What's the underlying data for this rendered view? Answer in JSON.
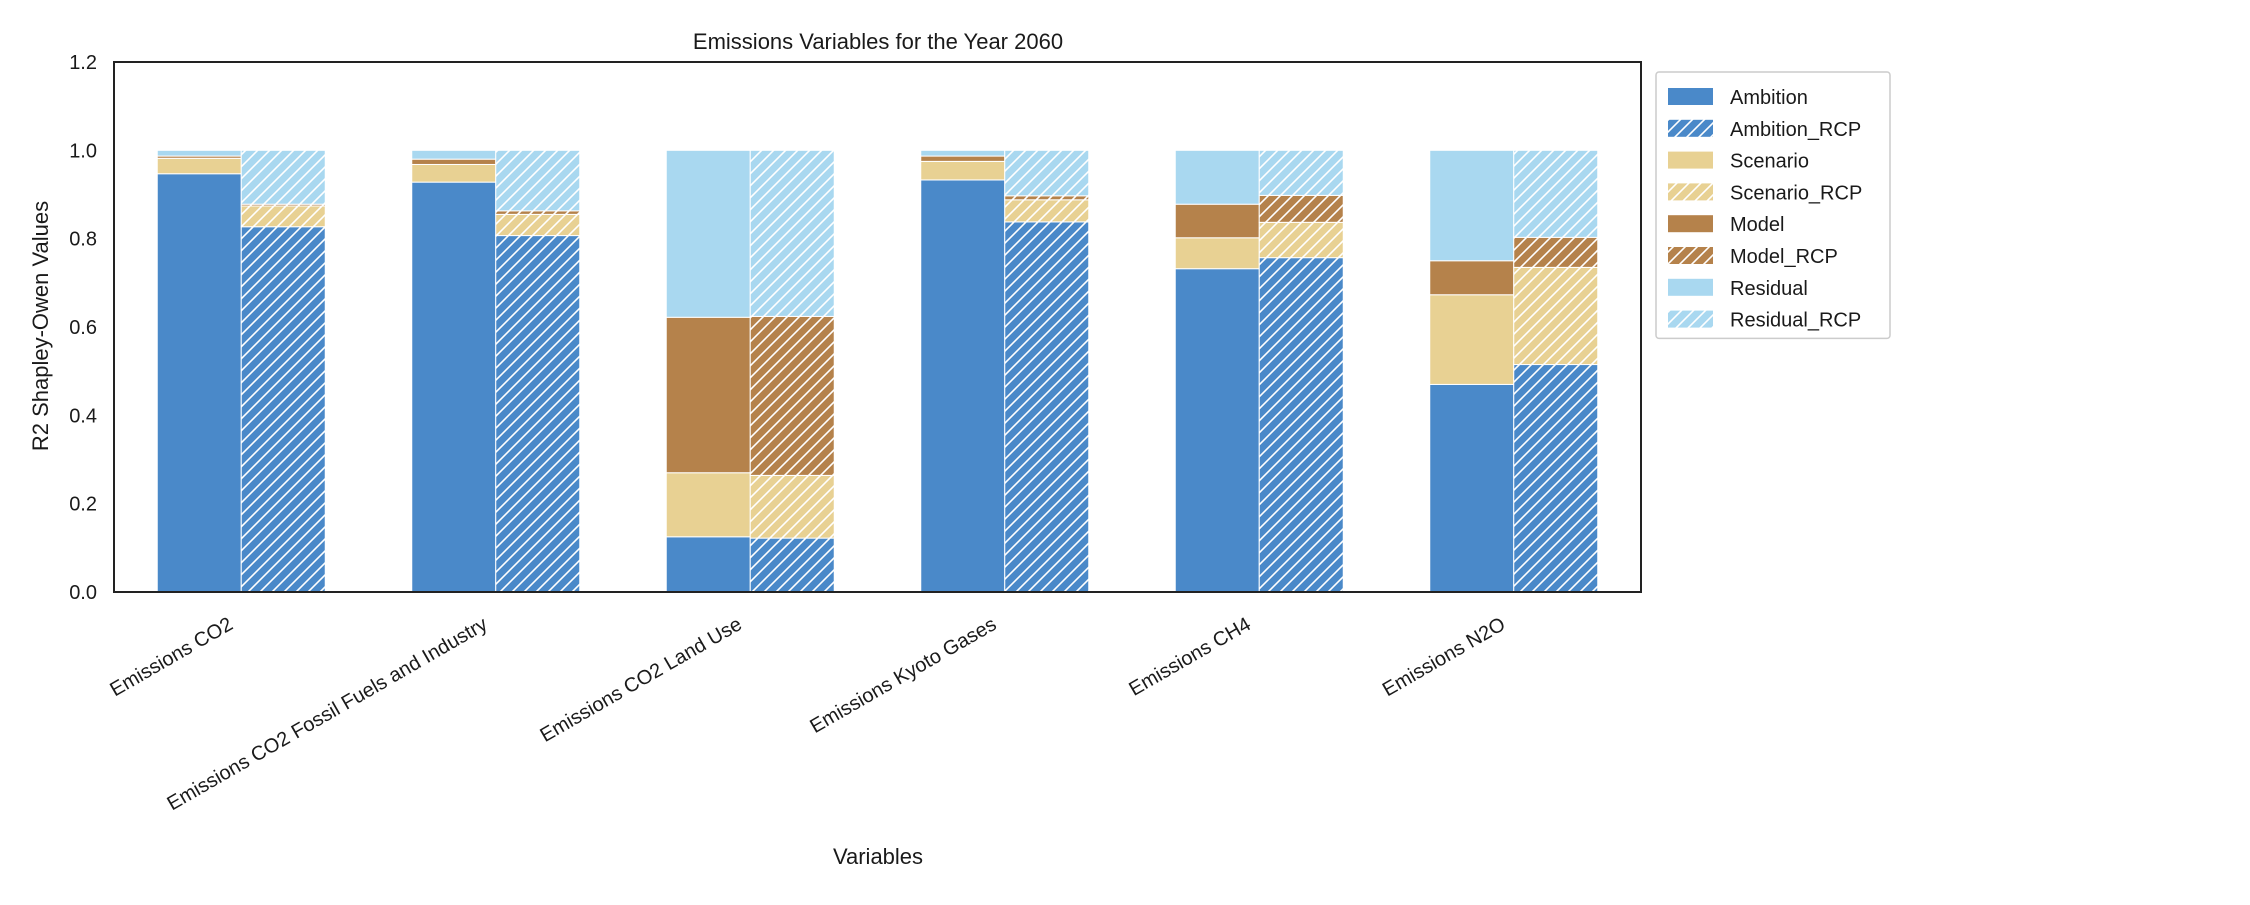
{
  "chart_data": {
    "type": "bar",
    "stacked": true,
    "grouped": true,
    "title": "Emissions Variables for the Year 2060",
    "xlabel": "Variables",
    "ylabel": "R2 Shapley-Owen Values",
    "ylim": [
      0,
      1.2
    ],
    "yticks": [
      0.0,
      0.2,
      0.4,
      0.6,
      0.8,
      1.0,
      1.2
    ],
    "ytick_labels": [
      "0.0",
      "0.2",
      "0.4",
      "0.6",
      "0.8",
      "1.0",
      "1.2"
    ],
    "grid": false,
    "legend_position": "outside-top-right",
    "categories": [
      "Emissions CO2",
      "Emissions CO2 Fossil Fuels and Industry",
      "Emissions CO2 Land Use",
      "Emissions Kyoto Gases",
      "Emissions CH4",
      "Emissions N2O"
    ],
    "groups": [
      {
        "name": "",
        "hatched": false
      },
      {
        "name": "RCP",
        "hatched": true
      }
    ],
    "components": [
      {
        "name": "Ambition",
        "color": "#4a89c9"
      },
      {
        "name": "Scenario",
        "color": "#e8d193"
      },
      {
        "name": "Model",
        "color": "#b5824b"
      },
      {
        "name": "Residual",
        "color": "#a9d8f0"
      }
    ],
    "series": [
      {
        "name": "Ambition",
        "group": 0,
        "values": [
          0.947,
          0.928,
          0.125,
          0.933,
          0.732,
          0.47
        ]
      },
      {
        "name": "Ambition_RCP",
        "group": 1,
        "values": [
          0.827,
          0.807,
          0.122,
          0.838,
          0.757,
          0.515
        ]
      },
      {
        "name": "Scenario",
        "group": 0,
        "values": [
          0.035,
          0.04,
          0.145,
          0.042,
          0.07,
          0.203
        ]
      },
      {
        "name": "Scenario_RCP",
        "group": 1,
        "values": [
          0.047,
          0.048,
          0.142,
          0.05,
          0.08,
          0.22
        ]
      },
      {
        "name": "Model",
        "group": 0,
        "values": [
          0.005,
          0.012,
          0.352,
          0.012,
          0.076,
          0.077
        ]
      },
      {
        "name": "Model_RCP",
        "group": 1,
        "values": [
          0.004,
          0.008,
          0.36,
          0.009,
          0.061,
          0.068
        ]
      },
      {
        "name": "Residual",
        "group": 0,
        "values": [
          0.013,
          0.02,
          0.378,
          0.013,
          0.122,
          0.25
        ]
      },
      {
        "name": "Residual_RCP",
        "group": 1,
        "values": [
          0.122,
          0.137,
          0.376,
          0.103,
          0.102,
          0.197
        ]
      }
    ],
    "legend_entries": [
      {
        "label": "Ambition",
        "color": "#4a89c9",
        "hatched": false
      },
      {
        "label": "Ambition_RCP",
        "color": "#4a89c9",
        "hatched": true
      },
      {
        "label": "Scenario",
        "color": "#e8d193",
        "hatched": false
      },
      {
        "label": "Scenario_RCP",
        "color": "#e8d193",
        "hatched": true
      },
      {
        "label": "Model",
        "color": "#b5824b",
        "hatched": false
      },
      {
        "label": "Model_RCP",
        "color": "#b5824b",
        "hatched": true
      },
      {
        "label": "Residual",
        "color": "#a9d8f0",
        "hatched": false
      },
      {
        "label": "Residual_RCP",
        "color": "#a9d8f0",
        "hatched": true
      }
    ]
  }
}
